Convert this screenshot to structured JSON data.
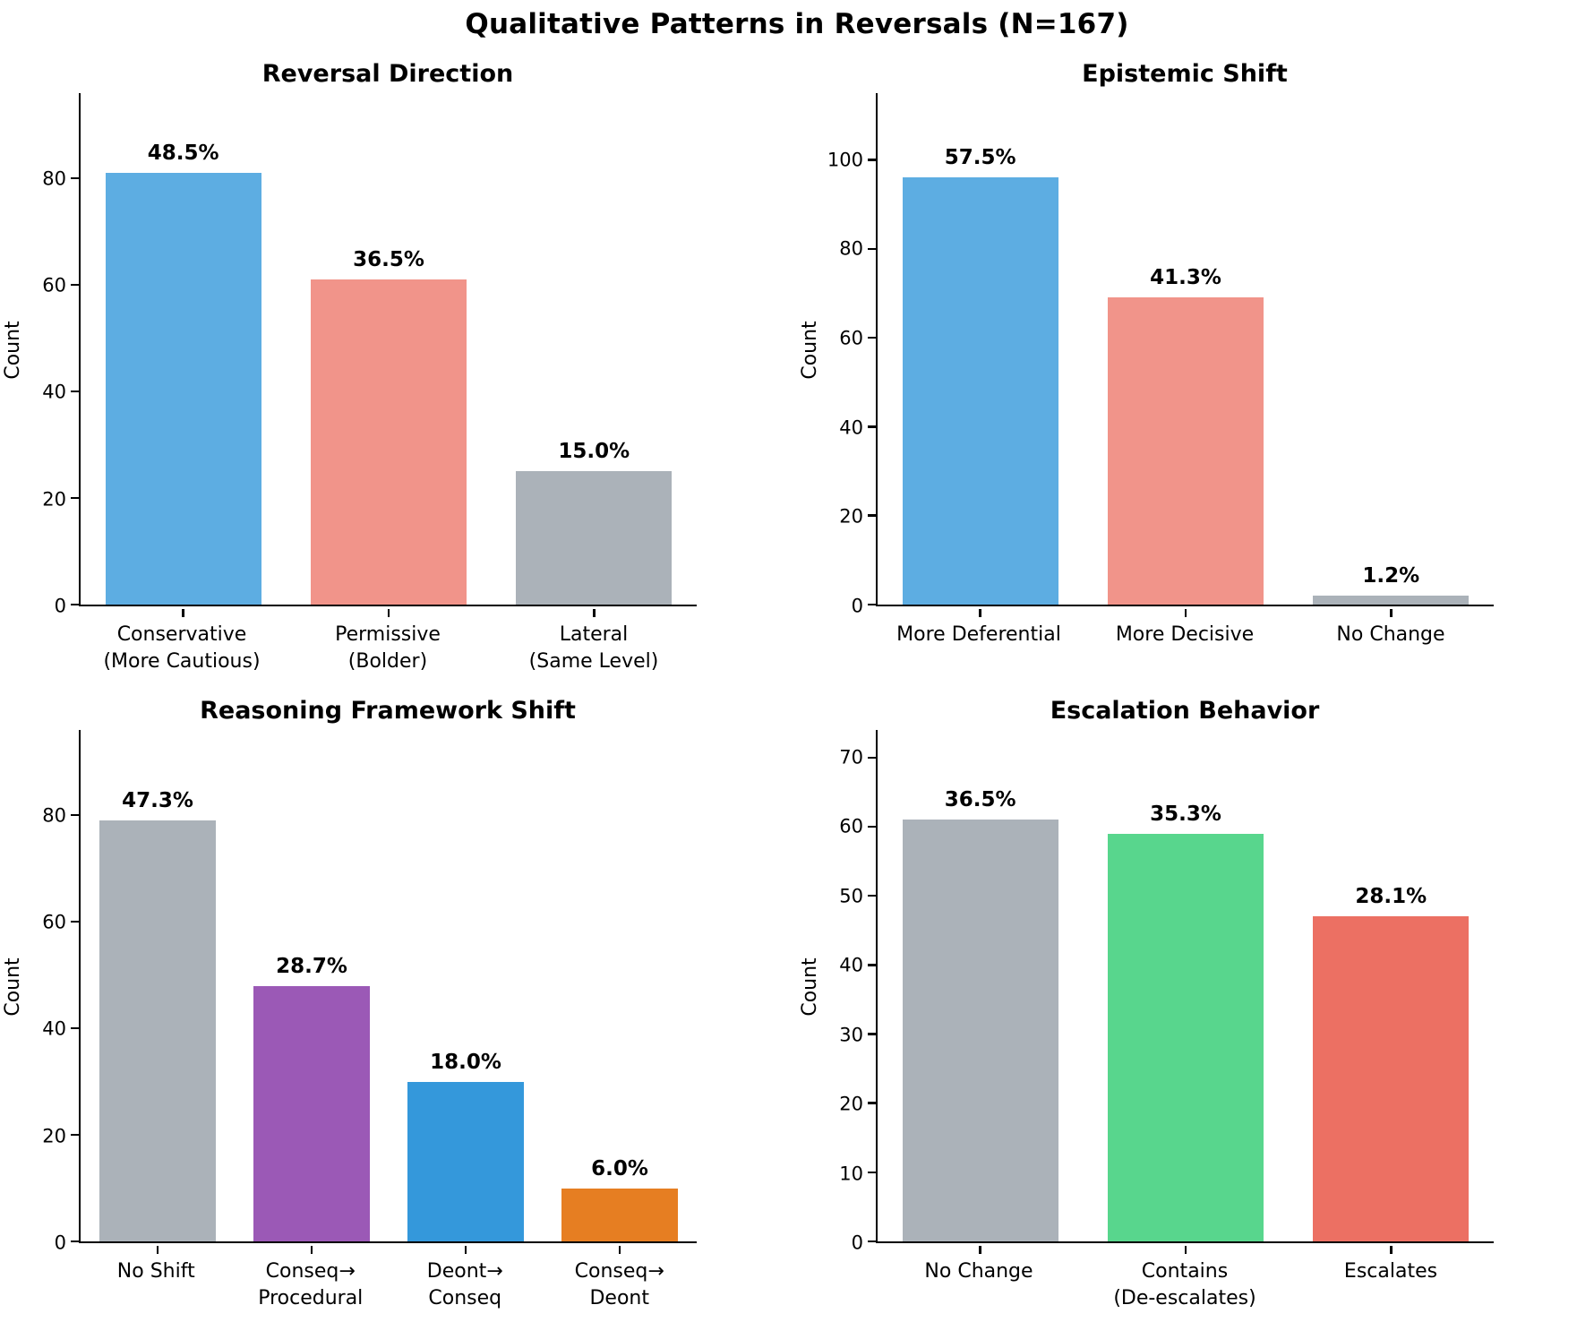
{
  "figure": {
    "title": "Qualitative Patterns in Reversals (N=167)"
  },
  "chart_data": [
    {
      "type": "bar",
      "title": "Reversal Direction",
      "ylabel": "Count",
      "categories": [
        [
          "Conservative",
          "(More Cautious)"
        ],
        [
          "Permissive",
          "(Bolder)"
        ],
        [
          "Lateral",
          "(Same Level)"
        ]
      ],
      "values": [
        81,
        61,
        25
      ],
      "value_labels": [
        "48.5%",
        "36.5%",
        "15.0%"
      ],
      "colors": [
        "#5DADE2",
        "#F1948A",
        "#ABB2B9"
      ],
      "yticks": [
        0,
        20,
        40,
        60,
        80
      ],
      "ylim": [
        0,
        96
      ],
      "grid": false,
      "legend": "none"
    },
    {
      "type": "bar",
      "title": "Epistemic Shift",
      "ylabel": "Count",
      "categories": [
        [
          "More Deferential"
        ],
        [
          "More Decisive"
        ],
        [
          "No Change"
        ]
      ],
      "values": [
        96,
        69,
        2
      ],
      "value_labels": [
        "57.5%",
        "41.3%",
        "1.2%"
      ],
      "colors": [
        "#5DADE2",
        "#F1948A",
        "#ABB2B9"
      ],
      "yticks": [
        0,
        20,
        40,
        60,
        80,
        100
      ],
      "ylim": [
        0,
        115
      ],
      "grid": false,
      "legend": "none"
    },
    {
      "type": "bar",
      "title": "Reasoning Framework Shift",
      "ylabel": "Count",
      "categories": [
        [
          "No Shift"
        ],
        [
          "Conseq→",
          "Procedural"
        ],
        [
          "Deont→",
          "Conseq"
        ],
        [
          "Conseq→",
          "Deont"
        ]
      ],
      "values": [
        79,
        48,
        30,
        10
      ],
      "value_labels": [
        "47.3%",
        "28.7%",
        "18.0%",
        "6.0%"
      ],
      "colors": [
        "#ABB2B9",
        "#9B59B6",
        "#3498DB",
        "#E67E22"
      ],
      "yticks": [
        0,
        20,
        40,
        60,
        80
      ],
      "ylim": [
        0,
        96
      ],
      "grid": false,
      "legend": "none"
    },
    {
      "type": "bar",
      "title": "Escalation Behavior",
      "ylabel": "Count",
      "categories": [
        [
          "No Change"
        ],
        [
          "Contains",
          "(De-escalates)"
        ],
        [
          "Escalates"
        ]
      ],
      "values": [
        61,
        59,
        47
      ],
      "value_labels": [
        "36.5%",
        "35.3%",
        "28.1%"
      ],
      "colors": [
        "#ABB2B9",
        "#58D68D",
        "#EC7063"
      ],
      "yticks": [
        0,
        10,
        20,
        30,
        40,
        50,
        60,
        70
      ],
      "ylim": [
        0,
        74
      ],
      "grid": false,
      "legend": "none"
    }
  ]
}
